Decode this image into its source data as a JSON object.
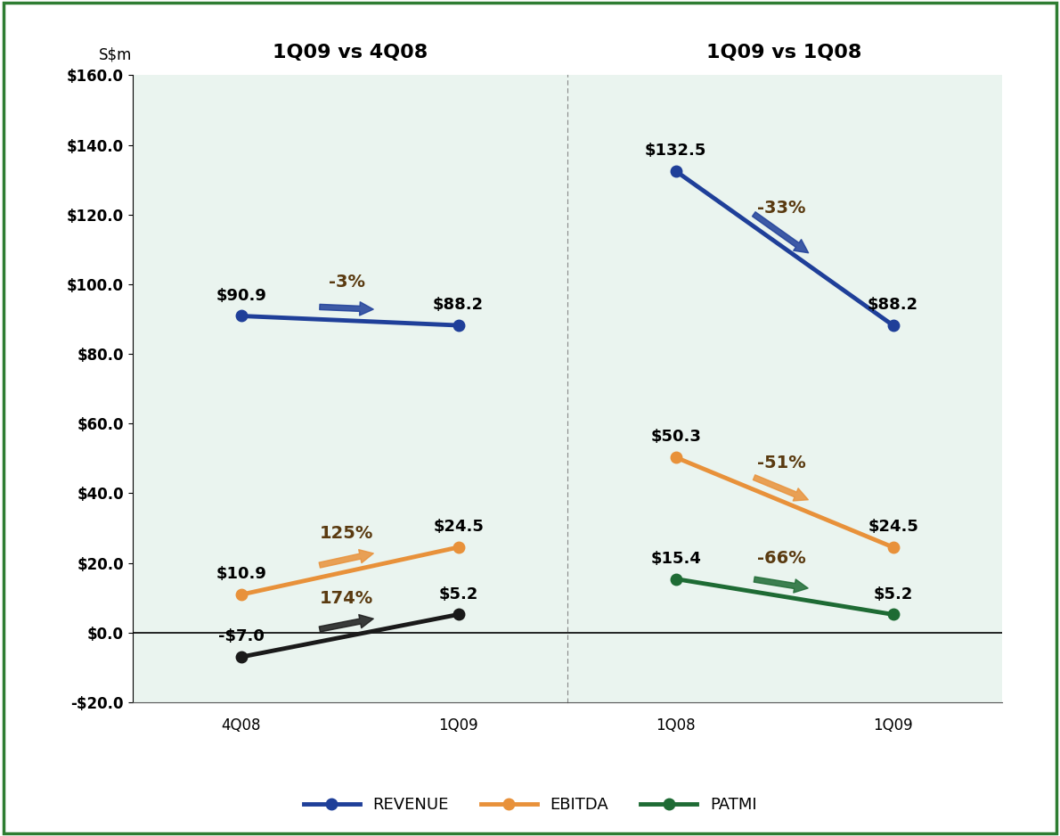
{
  "chart_data": [
    {
      "type": "line",
      "title": "1Q09 vs 4Q08",
      "y_label": "S$m",
      "categories": [
        "4Q08",
        "1Q09"
      ],
      "ylim": [
        -20,
        160
      ],
      "yticks": [
        {
          "value": -20,
          "label": "-$20.0"
        },
        {
          "value": 0,
          "label": "$0.0"
        },
        {
          "value": 20,
          "label": "$20.0"
        },
        {
          "value": 40,
          "label": "$40.0"
        },
        {
          "value": 60,
          "label": "$60.0"
        },
        {
          "value": 80,
          "label": "$80.0"
        },
        {
          "value": 100,
          "label": "$100.0"
        },
        {
          "value": 120,
          "label": "$120.0"
        },
        {
          "value": 140,
          "label": "$140.0"
        },
        {
          "value": 160,
          "label": "$160.0"
        }
      ],
      "data_labels": true,
      "marker": "o",
      "series": [
        {
          "name": "REVENUE",
          "color": "#1f3f99",
          "values": [
            90.9,
            88.2
          ],
          "value_labels": [
            "$90.9",
            "$88.2"
          ],
          "annotation": "-3%"
        },
        {
          "name": "EBITDA",
          "color": "#e8913a",
          "values": [
            10.9,
            24.5
          ],
          "value_labels": [
            "$10.9",
            "$24.5"
          ],
          "annotation": "125%"
        },
        {
          "name": "PATMI",
          "color": "#1a1a1a",
          "values": [
            -7.0,
            5.2
          ],
          "value_labels": [
            "-$7.0",
            "$5.2"
          ],
          "annotation": "174%"
        }
      ]
    },
    {
      "type": "line",
      "title": "1Q09 vs 1Q08",
      "categories": [
        "1Q08",
        "1Q09"
      ],
      "ylim": [
        -20,
        160
      ],
      "tick_labels": "x",
      "data_labels": true,
      "marker": "o",
      "legend": "bottom",
      "series": [
        {
          "name": "REVENUE",
          "color": "#1f3f99",
          "values": [
            132.5,
            88.2
          ],
          "value_labels": [
            "$132.5",
            "$88.2"
          ],
          "annotation": "-33%"
        },
        {
          "name": "EBITDA",
          "color": "#e8913a",
          "values": [
            50.3,
            24.5
          ],
          "value_labels": [
            "$50.3",
            "$24.5"
          ],
          "annotation": "-51%"
        },
        {
          "name": "PATMI",
          "color": "#1e6b34",
          "values": [
            15.4,
            5.2
          ],
          "value_labels": [
            "$15.4",
            "$5.2"
          ],
          "annotation": "-66%"
        }
      ]
    }
  ]
}
